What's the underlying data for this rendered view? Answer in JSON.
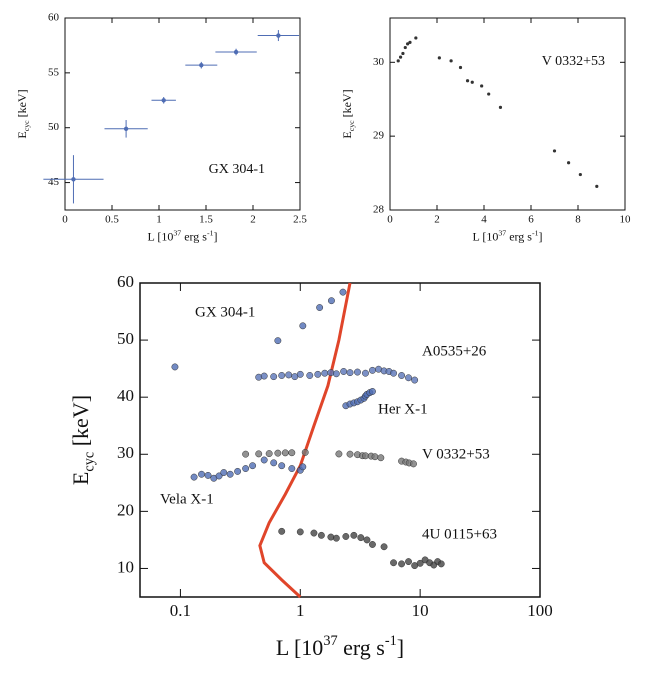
{
  "chart_data": [
    {
      "type": "scatter",
      "xlabel": [
        "L [10",
        "37",
        " erg s",
        "-1",
        "]"
      ],
      "ylabel": [
        "E",
        "cyc",
        " [keV]"
      ],
      "xlim": [
        0,
        2.5
      ],
      "xticks": [
        0,
        0.5,
        1,
        1.5,
        2,
        2.5
      ],
      "ylim": [
        42.5,
        60
      ],
      "yticks": [
        45,
        50,
        55,
        60
      ],
      "series": [
        {
          "name": "GX 304-1",
          "color": "#4f6db4",
          "x": [
            0.09,
            0.65,
            1.05,
            1.45,
            1.82,
            2.27
          ],
          "values": [
            45.3,
            49.9,
            52.5,
            55.7,
            56.9,
            58.4
          ],
          "xerr": [
            0.32,
            0.23,
            0.13,
            0.17,
            0.22,
            0.22
          ],
          "yerr": [
            2.2,
            0.8,
            0.3,
            0.3,
            0.3,
            0.5
          ]
        }
      ]
    },
    {
      "type": "scatter",
      "xlabel": [
        "L [10",
        "37",
        " erg s",
        "-1",
        "]"
      ],
      "ylabel": [
        "E",
        "cyc",
        " [keV]"
      ],
      "xlim": [
        0,
        10
      ],
      "xticks": [
        0,
        2,
        4,
        6,
        8,
        10
      ],
      "ylim": [
        28,
        30.6
      ],
      "yticks": [
        28,
        29,
        30
      ],
      "series": [
        {
          "name": "V 0332+53",
          "color": "#333333",
          "x": [
            0.35,
            0.45,
            0.55,
            0.65,
            0.75,
            0.85,
            1.1,
            2.1,
            2.6,
            3.0,
            3.3,
            3.5,
            3.9,
            4.2,
            4.7,
            7.0,
            7.6,
            8.1,
            8.8
          ],
          "values": [
            30.02,
            30.07,
            30.12,
            30.2,
            30.25,
            30.27,
            30.33,
            30.06,
            30.02,
            29.93,
            29.75,
            29.73,
            29.68,
            29.57,
            29.39,
            28.8,
            28.64,
            28.48,
            28.32
          ]
        }
      ]
    },
    {
      "type": "scatter",
      "log_x": true,
      "xlabel": [
        "L [10",
        "37",
        " erg s",
        "-1",
        "]"
      ],
      "ylabel": [
        "E",
        "cyc",
        " [keV]"
      ],
      "xlim": [
        0.046,
        100
      ],
      "xticks": [
        0.1,
        1,
        10,
        100
      ],
      "ylim": [
        5,
        60
      ],
      "yticks": [
        10,
        20,
        30,
        40,
        50,
        60
      ],
      "series": [
        {
          "name": "GX 304-1",
          "color": "#4f6db4",
          "x": [
            0.09,
            0.65,
            1.05,
            1.45,
            1.82,
            2.27
          ],
          "values": [
            45.3,
            49.9,
            52.5,
            55.7,
            56.9,
            58.4
          ]
        },
        {
          "name": "A0535+26",
          "color": "#5a74b8",
          "x": [
            0.45,
            0.5,
            0.6,
            0.7,
            0.8,
            0.9,
            1.0,
            1.2,
            1.4,
            1.6,
            1.8,
            2.0,
            2.3,
            2.6,
            3,
            3.5,
            4,
            4.5,
            5,
            5.5,
            6,
            7,
            8,
            9
          ],
          "values": [
            43.5,
            43.7,
            43.6,
            43.8,
            43.9,
            43.6,
            44,
            43.8,
            44,
            44.2,
            44.3,
            44.1,
            44.5,
            44.3,
            44.4,
            44.2,
            44.7,
            44.9,
            44.6,
            44.5,
            44.2,
            43.8,
            43.4,
            43
          ]
        },
        {
          "name": "Her X-1",
          "color": "#4f6db4",
          "x": [
            2.4,
            2.6,
            2.8,
            3.0,
            3.2,
            3.4,
            3.5,
            3.6,
            3.8,
            4.0
          ],
          "values": [
            38.5,
            38.8,
            39.0,
            39.2,
            39.5,
            39.8,
            40.2,
            40.5,
            40.8,
            41.0
          ]
        },
        {
          "name": "V 0332+53",
          "color": "#777777",
          "x": [
            0.35,
            0.45,
            0.55,
            0.65,
            0.75,
            0.85,
            1.1,
            2.1,
            2.6,
            3.0,
            3.3,
            3.5,
            3.9,
            4.2,
            4.7,
            7.0,
            7.6,
            8.1,
            8.8
          ],
          "values": [
            30.02,
            30.07,
            30.12,
            30.2,
            30.25,
            30.27,
            30.33,
            30.06,
            30.02,
            29.93,
            29.75,
            29.73,
            29.68,
            29.57,
            29.39,
            28.8,
            28.64,
            28.48,
            28.32
          ]
        },
        {
          "name": "Vela X-1",
          "color": "#4f6db4",
          "x": [
            0.13,
            0.15,
            0.17,
            0.19,
            0.21,
            0.23,
            0.26,
            0.3,
            0.35,
            0.4,
            0.5,
            0.6,
            0.7,
            0.85,
            1.0,
            1.05
          ],
          "values": [
            26,
            26.5,
            26.3,
            25.8,
            26.2,
            26.8,
            26.5,
            27,
            27.5,
            28,
            29,
            28.5,
            28,
            27.5,
            27.2,
            27.8
          ]
        },
        {
          "name": "4U 0115+63",
          "color": "#444444",
          "x": [
            0.7,
            1.0,
            1.3,
            1.5,
            1.8,
            2.0,
            2.4,
            2.8,
            3.2,
            3.6,
            4.0,
            5,
            6,
            7,
            8,
            9,
            10,
            11,
            12,
            13,
            14,
            15
          ],
          "values": [
            16.5,
            16.4,
            16.2,
            15.8,
            15.5,
            15.3,
            15.6,
            15.8,
            15.4,
            15,
            14.2,
            13.8,
            11,
            10.8,
            11.2,
            10.5,
            10.9,
            11.5,
            11,
            10.6,
            11.2,
            10.8
          ]
        }
      ],
      "curve": {
        "color": "#e0452a",
        "x": [
          1.0,
          0.7,
          0.5,
          0.46,
          0.55,
          0.75,
          1.0,
          1.3,
          1.7,
          2.1,
          2.6
        ],
        "values": [
          5,
          8,
          11,
          14,
          18,
          23,
          28,
          35,
          42,
          50,
          60
        ]
      }
    }
  ]
}
